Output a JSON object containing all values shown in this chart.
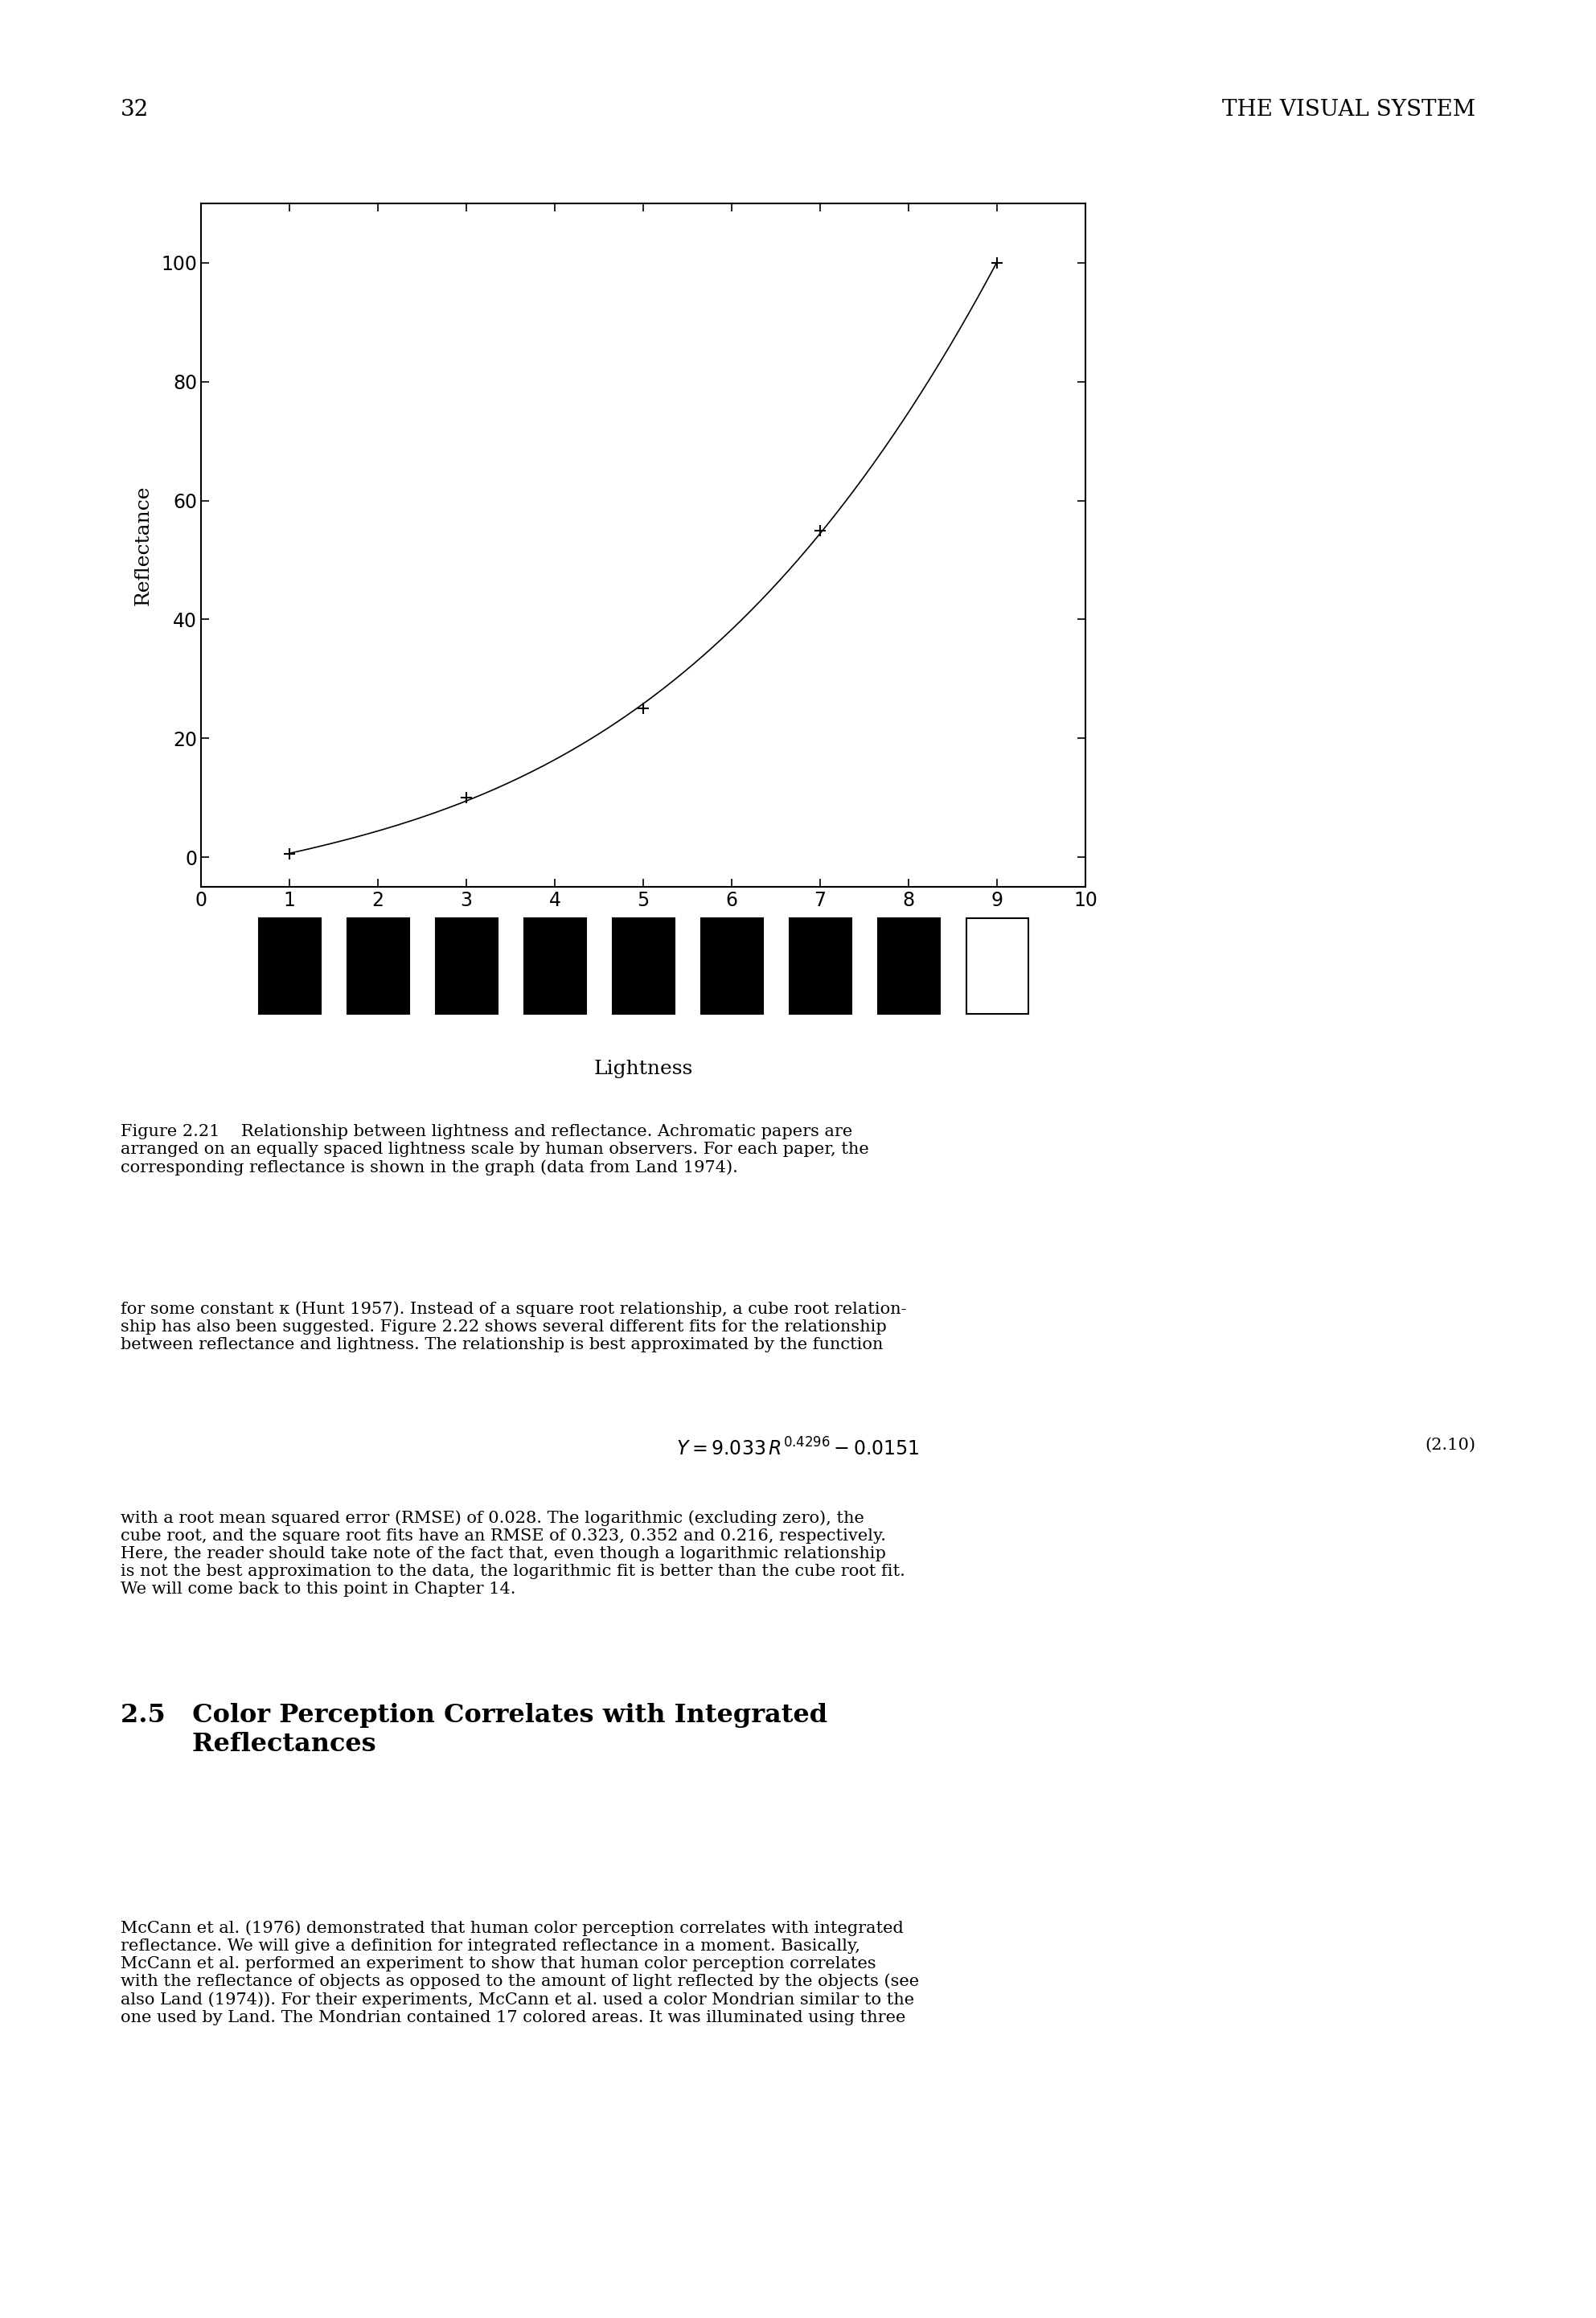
{
  "lightness_data": [
    1,
    3,
    5,
    7,
    9
  ],
  "reflectance_data": [
    0.5,
    10.0,
    25.0,
    55.0,
    100.0
  ],
  "xlabel": "Lightness",
  "ylabel": "Reflectance",
  "xlim": [
    0,
    10
  ],
  "ylim": [
    -5,
    110
  ],
  "yticks": [
    0,
    20,
    40,
    60,
    80,
    100
  ],
  "xticks": [
    0,
    1,
    2,
    3,
    4,
    5,
    6,
    7,
    8,
    9,
    10
  ],
  "page_number": "32",
  "header_title": "THE VISUAL SYSTEM",
  "square_colors": [
    "#000000",
    "#000000",
    "#000000",
    "#000000",
    "#000000",
    "#000000",
    "#000000",
    "#000000",
    "#ffffff"
  ],
  "square_lightness": [
    1,
    2,
    3,
    4,
    5,
    6,
    7,
    8,
    9
  ],
  "background_color": "#ffffff",
  "line_color": "#000000",
  "marker": "+",
  "marker_size": 10,
  "line_style": "-",
  "line_width": 1.2
}
